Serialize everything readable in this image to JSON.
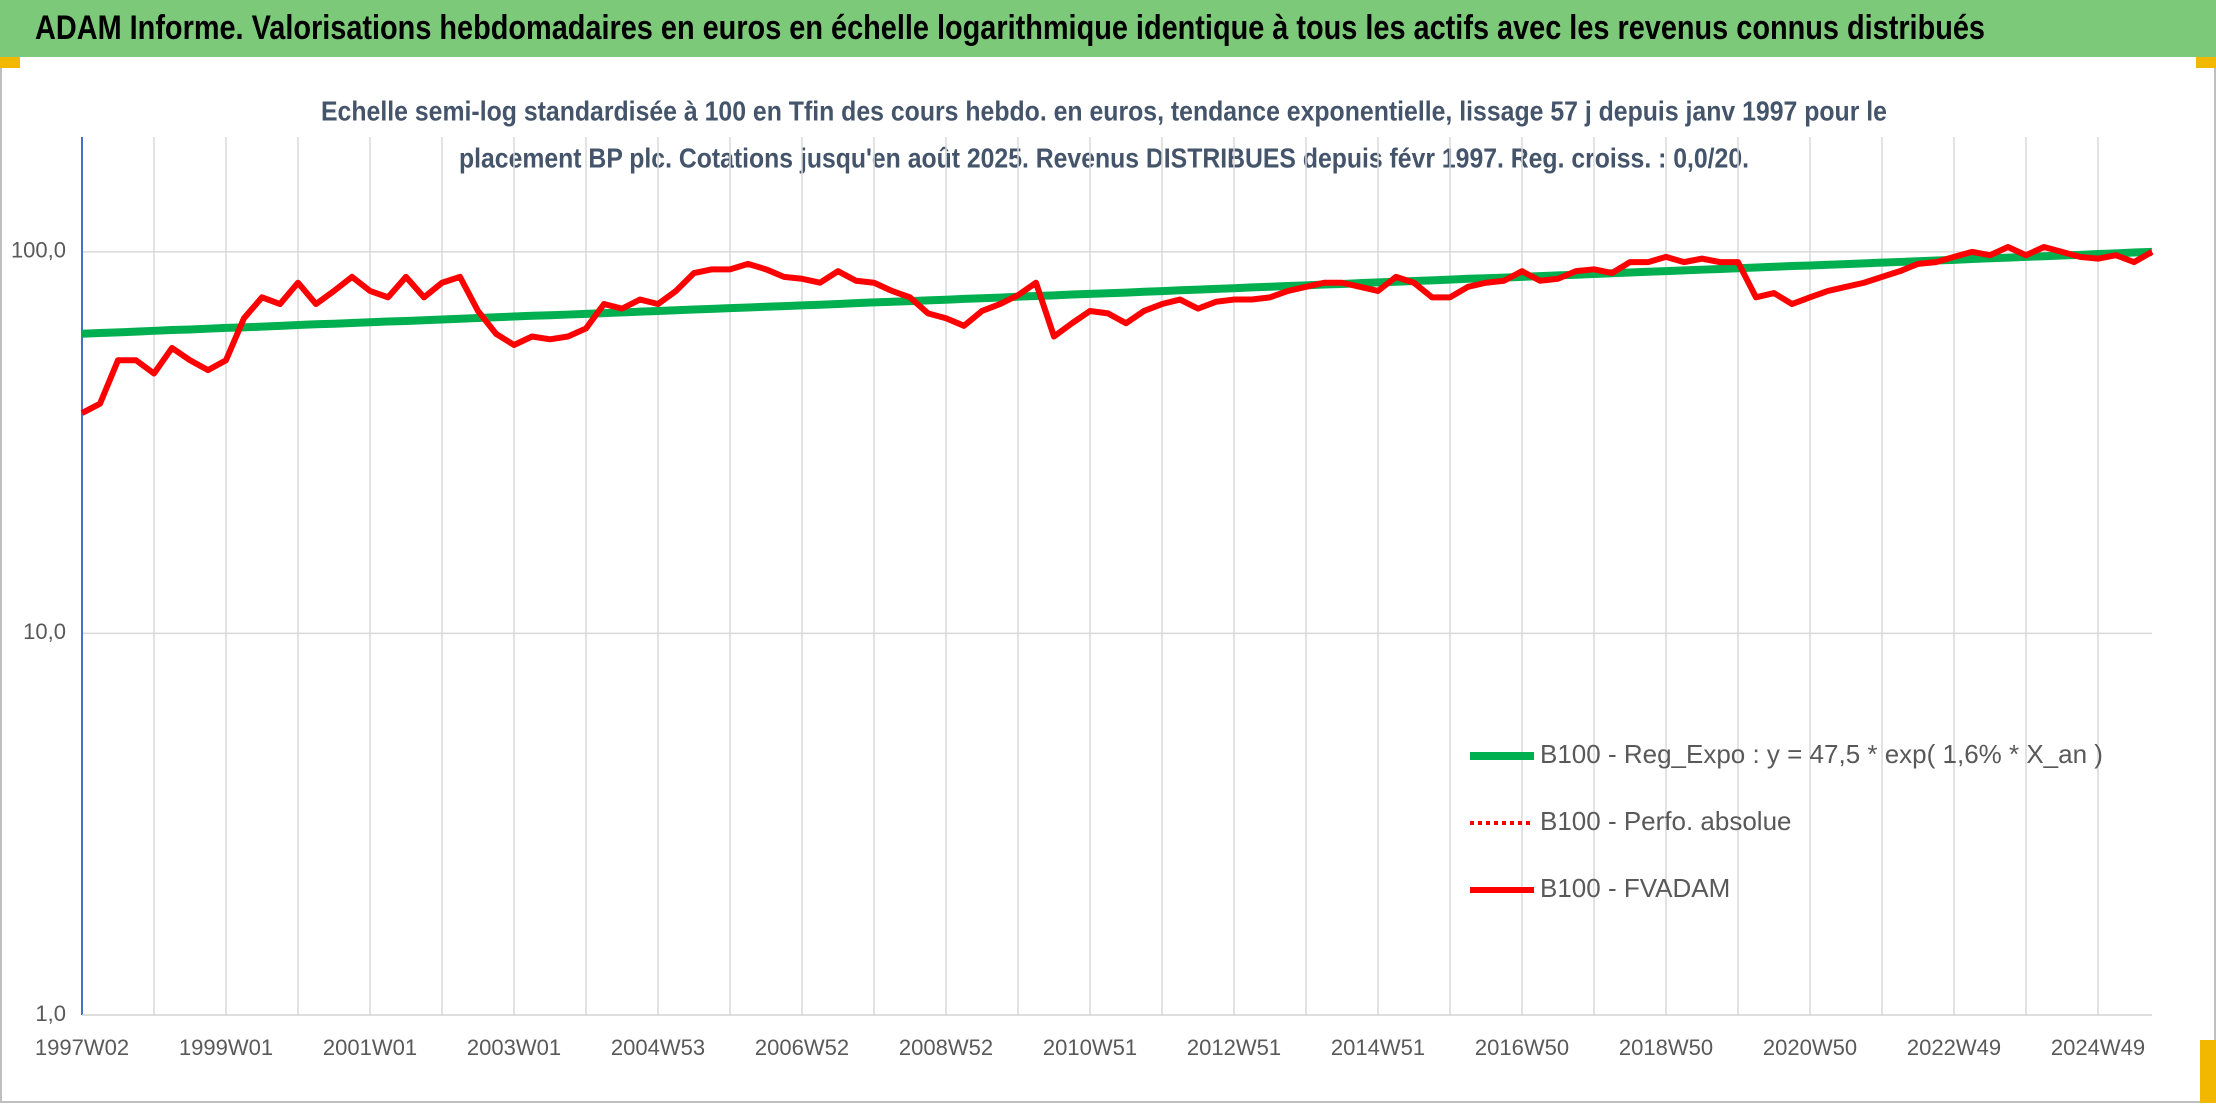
{
  "header": "ADAM Informe. Valorisations hebdomadaires en euros en échelle logarithmique identique à tous les actifs avec les revenus connus distribués",
  "chart_data": {
    "type": "line",
    "title": [
      "Echelle semi-log standardisée à 100 en Tfin des cours hebdo. en euros, tendance exponentielle, lissage 57 j depuis janv 1997 pour le",
      "placement BP plc. Cotations jusqu'en août 2025. Revenus DISTRIBUES depuis févr 1997. Reg. croiss. : 0,0/20."
    ],
    "categories": [
      "1997W02",
      null,
      null,
      null,
      null,
      null,
      null,
      null,
      "1999W01",
      null,
      null,
      null,
      null,
      null,
      null,
      null,
      "2001W01",
      null,
      null,
      null,
      null,
      null,
      null,
      null,
      "2003W01",
      null,
      null,
      null,
      null,
      null,
      null,
      null,
      "2004W53",
      null,
      null,
      null,
      null,
      null,
      null,
      null,
      "2006W52",
      null,
      null,
      null,
      null,
      null,
      null,
      null,
      "2008W52",
      null,
      null,
      null,
      null,
      null,
      null,
      null,
      "2010W51",
      null,
      null,
      null,
      null,
      null,
      null,
      null,
      "2012W51",
      null,
      null,
      null,
      null,
      null,
      null,
      null,
      "2014W51",
      null,
      null,
      null,
      null,
      null,
      null,
      null,
      "2016W50",
      null,
      null,
      null,
      null,
      null,
      null,
      null,
      "2018W50",
      null,
      null,
      null,
      null,
      null,
      null,
      null,
      "2020W50",
      null,
      null,
      null,
      null,
      null,
      null,
      null,
      "2022W49",
      null,
      null,
      null,
      null,
      null,
      null,
      null,
      "2024W49",
      null,
      null,
      null
    ],
    "series": [
      {
        "name": "B100 - Reg_Expo : y = 47,5 * exp( 1,6% *  X_an )",
        "color": "#00b050",
        "style": "solid",
        "values": [
          61.0,
          61.3,
          61.5,
          61.8,
          62.1,
          62.4,
          62.6,
          62.9,
          63.2,
          63.4,
          63.7,
          64.0,
          64.3,
          64.6,
          64.8,
          65.1,
          65.4,
          65.7,
          65.9,
          66.2,
          66.5,
          66.8,
          67.1,
          67.4,
          67.7,
          68.0,
          68.2,
          68.5,
          68.8,
          69.1,
          69.4,
          69.7,
          70.0,
          70.3,
          70.6,
          70.9,
          71.2,
          71.5,
          71.8,
          72.1,
          72.4,
          72.7,
          73.0,
          73.4,
          73.7,
          74.0,
          74.3,
          74.6,
          74.9,
          75.3,
          75.6,
          75.9,
          76.3,
          76.6,
          76.9,
          77.3,
          77.6,
          77.9,
          78.2,
          78.6,
          78.9,
          79.3,
          79.6,
          80.0,
          80.3,
          80.7,
          81.0,
          81.4,
          81.7,
          82.1,
          82.4,
          82.8,
          83.2,
          83.5,
          83.9,
          84.2,
          84.6,
          85.0,
          85.3,
          85.6,
          86.0,
          86.4,
          86.8,
          87.1,
          87.5,
          87.9,
          88.3,
          88.7,
          89.0,
          89.4,
          89.8,
          90.2,
          90.6,
          91.0,
          91.4,
          91.8,
          92.1,
          92.5,
          92.9,
          93.3,
          93.7,
          94.1,
          94.5,
          94.9,
          95.3,
          95.8,
          96.2,
          96.6,
          97.0,
          97.4,
          97.8,
          98.2,
          98.7,
          99.1,
          99.6,
          100.0
        ]
      },
      {
        "name": "B100 - Perfo. absolue",
        "color": "#ff0000",
        "style": "dotted",
        "values": [
          37.8,
          40,
          52,
          52,
          48,
          56,
          52,
          49,
          52,
          67,
          76,
          73,
          83,
          73,
          79,
          86,
          79,
          76,
          86,
          76,
          83,
          86,
          70,
          61,
          57,
          60,
          59,
          60,
          63,
          73,
          71,
          75,
          73,
          79,
          88,
          90,
          90,
          93,
          90,
          86,
          85,
          83,
          89,
          84,
          83,
          79,
          76,
          69,
          67,
          64,
          70,
          73,
          77,
          83,
          60,
          65,
          70,
          69,
          65,
          70,
          73,
          75,
          71,
          74,
          75,
          75,
          76,
          79,
          81,
          83,
          83,
          81,
          79,
          86,
          83,
          76,
          76,
          81,
          83,
          84,
          89,
          84,
          85,
          89,
          90,
          88,
          94,
          94,
          97,
          94,
          96,
          94,
          94,
          76,
          78,
          73,
          76,
          79,
          81,
          83,
          86,
          89,
          93,
          94,
          97,
          100,
          98,
          103,
          98,
          103,
          100,
          97,
          96,
          98,
          94,
          100
        ]
      },
      {
        "name": "B100 - FVADAM",
        "color": "#ff0000",
        "style": "solid",
        "values": [
          37.8,
          40,
          52,
          52,
          48,
          56,
          52,
          49,
          52,
          67,
          76,
          73,
          83,
          73,
          79,
          86,
          79,
          76,
          86,
          76,
          83,
          86,
          70,
          61,
          57,
          60,
          59,
          60,
          63,
          73,
          71,
          75,
          73,
          79,
          88,
          90,
          90,
          93,
          90,
          86,
          85,
          83,
          89,
          84,
          83,
          79,
          76,
          69,
          67,
          64,
          70,
          73,
          77,
          83,
          60,
          65,
          70,
          69,
          65,
          70,
          73,
          75,
          71,
          74,
          75,
          75,
          76,
          79,
          81,
          83,
          83,
          81,
          79,
          86,
          83,
          76,
          76,
          81,
          83,
          84,
          89,
          84,
          85,
          89,
          90,
          88,
          94,
          94,
          97,
          94,
          96,
          94,
          94,
          76,
          78,
          73,
          76,
          79,
          81,
          83,
          86,
          89,
          93,
          94,
          97,
          100,
          98,
          103,
          98,
          103,
          100,
          97,
          96,
          98,
          94,
          100
        ]
      }
    ],
    "ylim": [
      1,
      200
    ],
    "yticks": [
      {
        "value": 1,
        "label": "1,0"
      },
      {
        "value": 10,
        "label": "10,0"
      },
      {
        "value": 100,
        "label": "100,0"
      }
    ],
    "log_y": true,
    "grid": true,
    "legend": "lower right"
  }
}
